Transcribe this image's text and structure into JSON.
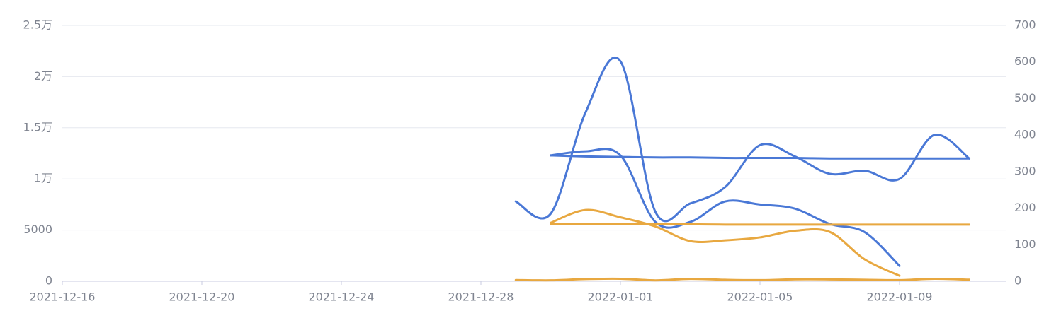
{
  "chart_data": {
    "type": "line",
    "x": [
      "2021-12-16",
      "2021-12-17",
      "2021-12-18",
      "2021-12-19",
      "2021-12-20",
      "2021-12-21",
      "2021-12-22",
      "2021-12-23",
      "2021-12-24",
      "2021-12-25",
      "2021-12-26",
      "2021-12-27",
      "2021-12-28",
      "2021-12-29",
      "2021-12-30",
      "2021-12-31",
      "2022-01-01",
      "2022-01-02",
      "2022-01-03",
      "2022-01-04",
      "2022-01-05",
      "2022-01-06",
      "2022-01-07",
      "2022-01-08",
      "2022-01-09",
      "2022-01-10",
      "2022-01-11"
    ],
    "xticks": [
      "2021-12-16",
      "2021-12-20",
      "2021-12-24",
      "2021-12-28",
      "2022-01-01",
      "2022-01-05",
      "2022-01-09"
    ],
    "ylim": [
      0,
      25000
    ],
    "yticks": [
      0,
      5000,
      {
        "value": 10000,
        "label": "1万"
      },
      {
        "value": 15000,
        "label": "1.5万"
      },
      {
        "value": 20000,
        "label": "2万"
      },
      {
        "value": 25000,
        "label": "2.5万"
      }
    ],
    "y2lim": [
      0,
      700
    ],
    "y2ticks": [
      0,
      100,
      200,
      300,
      400,
      500,
      600,
      700
    ],
    "grid": true,
    "series": [
      {
        "color": "#4a78d6",
        "values": [
          null,
          null,
          null,
          null,
          null,
          null,
          null,
          null,
          null,
          null,
          null,
          null,
          null,
          7800,
          6600,
          16500,
          21500,
          6800,
          7600,
          9200,
          13300,
          12200,
          10500,
          10800,
          10000,
          14300,
          12000
        ]
      },
      {
        "color": "#4a78d6",
        "values": [
          null,
          null,
          null,
          null,
          null,
          null,
          null,
          null,
          null,
          null,
          null,
          null,
          null,
          null,
          12300,
          12700,
          12300,
          5800,
          5800,
          7800,
          7500,
          7100,
          5600,
          4800,
          1500,
          null,
          null
        ]
      },
      {
        "color": "#4a78d6",
        "values": [
          null,
          null,
          null,
          null,
          null,
          null,
          null,
          null,
          null,
          null,
          null,
          null,
          null,
          null,
          12300,
          12200,
          12150,
          12100,
          12100,
          12050,
          12050,
          12050,
          12000,
          12000,
          12000,
          12000,
          12000
        ]
      },
      {
        "color": "#e8a840",
        "values": [
          null,
          null,
          null,
          null,
          null,
          null,
          null,
          null,
          null,
          null,
          null,
          null,
          null,
          124,
          92,
          215,
          245,
          90,
          232,
          145,
          110,
          190,
          185,
          150,
          115,
          240,
          155
        ]
      },
      {
        "color": "#e8a840",
        "values": [
          null,
          null,
          null,
          null,
          null,
          null,
          null,
          null,
          null,
          null,
          null,
          null,
          null,
          null,
          157,
          157,
          156,
          156,
          156,
          155,
          155,
          155,
          155,
          155,
          155,
          155,
          155
        ],
        "axis": "y2"
      },
      {
        "color": "#e8a840",
        "values": [
          null,
          null,
          null,
          null,
          null,
          null,
          null,
          null,
          null,
          null,
          null,
          null,
          null,
          null,
          160,
          195,
          175,
          150,
          110,
          112,
          120,
          138,
          135,
          60,
          15,
          null,
          null
        ],
        "axis": "y2"
      }
    ]
  }
}
